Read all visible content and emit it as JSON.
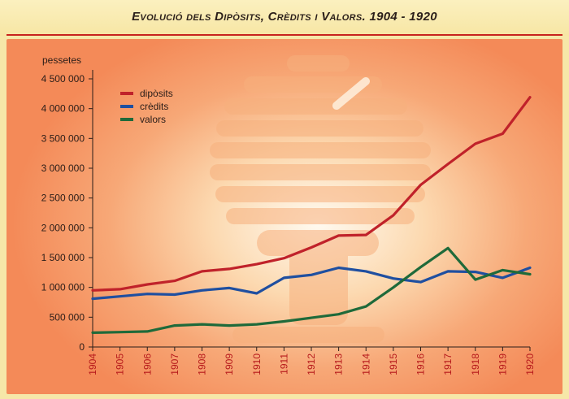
{
  "title": "Evolució dels Dipòsits, Crèdits i Valors. 1904 - 1920",
  "colors": {
    "diposits": "#c0222a",
    "credits": "#1f4fa0",
    "valors": "#1f6a3a",
    "axis": "#2a1d18",
    "xtick": "#b6191b"
  },
  "chart_data": {
    "type": "line",
    "ylabel": "pessetes",
    "x": [
      1904,
      1905,
      1906,
      1907,
      1908,
      1909,
      1910,
      1911,
      1912,
      1913,
      1914,
      1915,
      1916,
      1917,
      1918,
      1919,
      1920
    ],
    "x_tick_labels": [
      "1904",
      "1905",
      "1906",
      "1907",
      "1908",
      "1909",
      "1910",
      "1911",
      "1912",
      "1913",
      "1914",
      "1915",
      "1916",
      "1917",
      "1918",
      "1919",
      "1920"
    ],
    "ylim": [
      0,
      4500000
    ],
    "y_ticks": [
      0,
      500000,
      1000000,
      1500000,
      2000000,
      2500000,
      3000000,
      3500000,
      4000000,
      4500000
    ],
    "y_tick_labels": [
      "0",
      "500 000",
      "1 000 000",
      "1 500 000",
      "2 000 000",
      "2 500 000",
      "3 000 000",
      "3 500 000",
      "4 000 000",
      "4 500 000"
    ],
    "grid": false,
    "legend_position": "top-left",
    "series": [
      {
        "name": "dipòsits",
        "color": "#c0222a",
        "values": [
          950000,
          970000,
          1050000,
          1110000,
          1270000,
          1310000,
          1390000,
          1490000,
          1670000,
          1870000,
          1880000,
          2210000,
          2720000,
          3070000,
          3410000,
          3580000,
          4190000
        ]
      },
      {
        "name": "crèdits",
        "color": "#1f4fa0",
        "values": [
          810000,
          850000,
          890000,
          880000,
          950000,
          990000,
          900000,
          1160000,
          1210000,
          1330000,
          1270000,
          1150000,
          1090000,
          1270000,
          1260000,
          1160000,
          1330000
        ]
      },
      {
        "name": "valors",
        "color": "#1f6a3a",
        "values": [
          240000,
          250000,
          260000,
          360000,
          380000,
          360000,
          380000,
          430000,
          490000,
          550000,
          680000,
          1000000,
          1340000,
          1660000,
          1130000,
          1290000,
          1220000
        ]
      }
    ]
  }
}
